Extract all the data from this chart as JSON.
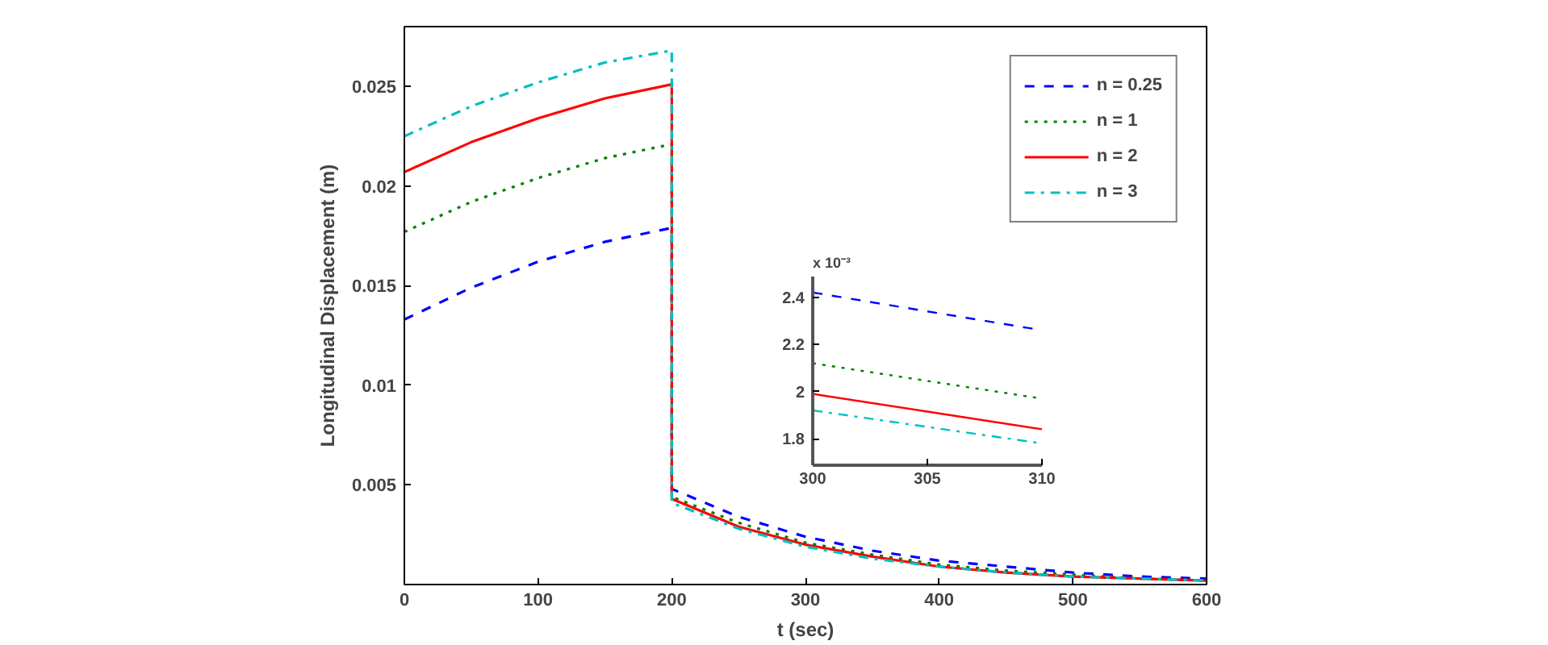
{
  "chart_data": [
    {
      "type": "line",
      "xlabel": "t (sec)",
      "ylabel": "Longitudinal Displacement (m)",
      "xlim": [
        0,
        600
      ],
      "ylim": [
        0,
        0.028
      ],
      "xticks": [
        0,
        100,
        200,
        300,
        400,
        500,
        600
      ],
      "yticks": [
        0.005,
        0.01,
        0.015,
        0.02,
        0.025
      ],
      "grid": false,
      "legend": "top right",
      "series": [
        {
          "name": "n = 0.25",
          "color": "#0000ff",
          "line_style": "dashed",
          "x": [
            0,
            50,
            100,
            150,
            200,
            200,
            250,
            300,
            350,
            400,
            450,
            500,
            550,
            600
          ],
          "values": [
            0.0133,
            0.0149,
            0.0162,
            0.0172,
            0.0179,
            0.0048,
            0.0034,
            0.0024,
            0.0017,
            0.0012,
            0.0009,
            0.0006,
            0.0004,
            0.0003
          ]
        },
        {
          "name": "n = 1",
          "color": "#008000",
          "line_style": "dotted",
          "x": [
            0,
            50,
            100,
            150,
            200,
            200,
            250,
            300,
            350,
            400,
            450,
            500,
            550,
            600
          ],
          "values": [
            0.0177,
            0.0192,
            0.0204,
            0.0214,
            0.0221,
            0.0044,
            0.0031,
            0.0021,
            0.0015,
            0.001,
            0.0007,
            0.0005,
            0.0003,
            0.0002
          ]
        },
        {
          "name": "n = 2",
          "color": "#ff0000",
          "line_style": "solid",
          "x": [
            0,
            50,
            100,
            150,
            200,
            200,
            250,
            300,
            350,
            400,
            450,
            500,
            550,
            600
          ],
          "values": [
            0.0207,
            0.0222,
            0.0234,
            0.0244,
            0.0251,
            0.0043,
            0.0029,
            0.002,
            0.0014,
            0.0009,
            0.0006,
            0.0004,
            0.0003,
            0.0002
          ]
        },
        {
          "name": "n = 3",
          "color": "#00bfbf",
          "line_style": "dashdot",
          "x": [
            0,
            50,
            100,
            150,
            200,
            200,
            250,
            300,
            350,
            400,
            450,
            500,
            550,
            600
          ],
          "values": [
            0.0225,
            0.024,
            0.0252,
            0.0262,
            0.0268,
            0.0041,
            0.0028,
            0.0019,
            0.0013,
            0.0009,
            0.0006,
            0.0004,
            0.0003,
            0.0002
          ]
        }
      ]
    },
    {
      "type": "line",
      "annotations": [
        "x 10⁻³"
      ],
      "xlim": [
        300,
        310
      ],
      "ylim": [
        1.69,
        2.49
      ],
      "xticks": [
        300,
        305,
        310
      ],
      "yticks": [
        1.8,
        2,
        2.2,
        2.4
      ],
      "series": [
        {
          "color": "#0000ff",
          "line_style": "dashed",
          "x": [
            300,
            305,
            310
          ],
          "values": [
            2.42,
            2.34,
            2.26
          ]
        },
        {
          "color": "#008000",
          "line_style": "dotted",
          "x": [
            300,
            305,
            310
          ],
          "values": [
            2.12,
            2.045,
            1.97
          ]
        },
        {
          "color": "#ff0000",
          "line_style": "solid",
          "x": [
            300,
            305,
            310
          ],
          "values": [
            1.99,
            1.915,
            1.84
          ]
        },
        {
          "color": "#00bfbf",
          "line_style": "dashdot",
          "x": [
            300,
            305,
            310
          ],
          "values": [
            1.92,
            1.85,
            1.78
          ]
        }
      ]
    }
  ]
}
